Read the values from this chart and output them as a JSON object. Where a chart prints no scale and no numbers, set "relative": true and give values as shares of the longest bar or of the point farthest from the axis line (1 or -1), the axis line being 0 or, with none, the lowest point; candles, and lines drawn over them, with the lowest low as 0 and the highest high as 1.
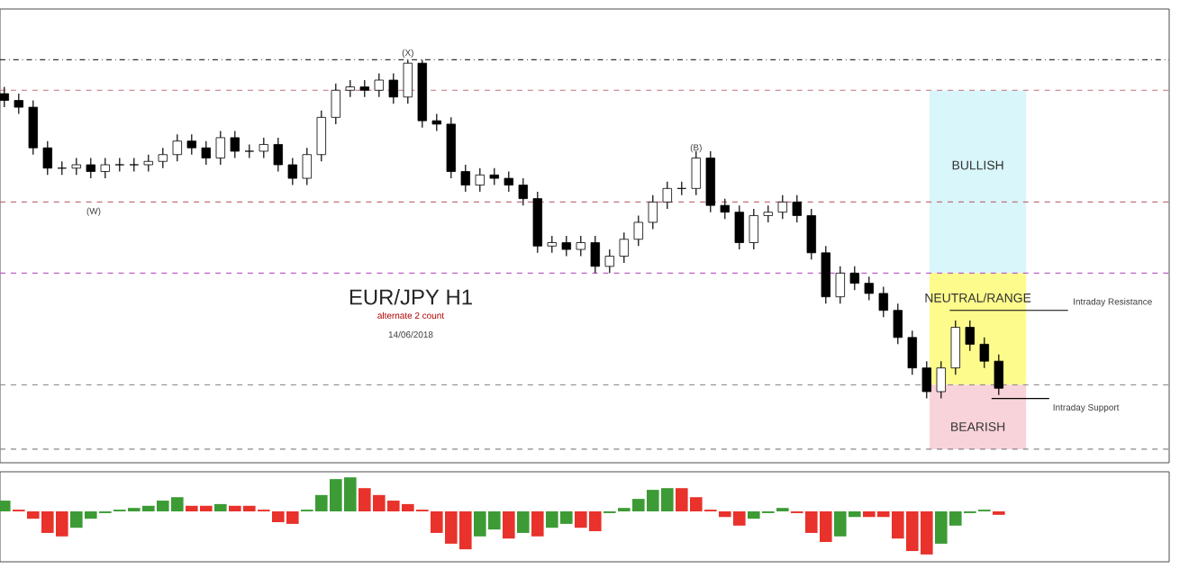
{
  "chart_data": [
    {
      "type": "candlestick",
      "title": "EUR/JPY H1",
      "subtitle": "alternate 2 count",
      "relative": true,
      "categories": [
        null,
        null,
        null,
        null,
        null,
        null,
        null,
        null,
        null,
        null,
        null,
        null,
        null,
        null,
        null,
        null,
        null,
        null,
        null,
        null,
        null,
        null,
        null,
        null,
        null,
        null,
        null,
        null,
        null,
        null,
        null,
        null,
        null,
        null,
        null,
        null,
        null,
        null,
        null,
        null,
        null,
        null,
        null,
        null,
        null,
        null,
        null,
        null,
        null,
        null,
        null,
        null,
        null,
        null,
        null,
        null,
        null,
        null,
        null,
        null,
        null,
        null,
        null,
        null,
        null,
        null,
        null,
        null,
        null,
        null
      ],
      "ohlc": [
        [
          0.9,
          0.92,
          0.86,
          0.88
        ],
        [
          0.88,
          0.9,
          0.84,
          0.86
        ],
        [
          0.86,
          0.88,
          0.72,
          0.74
        ],
        [
          0.74,
          0.76,
          0.66,
          0.68
        ],
        [
          0.68,
          0.7,
          0.66,
          0.68
        ],
        [
          0.68,
          0.71,
          0.66,
          0.69
        ],
        [
          0.69,
          0.71,
          0.65,
          0.67
        ],
        [
          0.67,
          0.71,
          0.65,
          0.69
        ],
        [
          0.69,
          0.71,
          0.67,
          0.69
        ],
        [
          0.69,
          0.71,
          0.67,
          0.69
        ],
        [
          0.69,
          0.72,
          0.67,
          0.7
        ],
        [
          0.7,
          0.74,
          0.68,
          0.72
        ],
        [
          0.72,
          0.78,
          0.7,
          0.76
        ],
        [
          0.76,
          0.78,
          0.72,
          0.74
        ],
        [
          0.74,
          0.76,
          0.69,
          0.71
        ],
        [
          0.71,
          0.79,
          0.69,
          0.77
        ],
        [
          0.77,
          0.79,
          0.71,
          0.73
        ],
        [
          0.73,
          0.75,
          0.71,
          0.73
        ],
        [
          0.73,
          0.77,
          0.71,
          0.75
        ],
        [
          0.75,
          0.77,
          0.67,
          0.69
        ],
        [
          0.69,
          0.71,
          0.63,
          0.65
        ],
        [
          0.65,
          0.74,
          0.63,
          0.72
        ],
        [
          0.72,
          0.85,
          0.7,
          0.83
        ],
        [
          0.83,
          0.93,
          0.81,
          0.91
        ],
        [
          0.91,
          0.94,
          0.89,
          0.92
        ],
        [
          0.92,
          0.94,
          0.89,
          0.91
        ],
        [
          0.91,
          0.96,
          0.89,
          0.94
        ],
        [
          0.94,
          0.96,
          0.87,
          0.89
        ],
        [
          0.89,
          1.0,
          0.87,
          0.99
        ],
        [
          0.99,
          1.0,
          0.8,
          0.82
        ],
        [
          0.82,
          0.84,
          0.79,
          0.81
        ],
        [
          0.81,
          0.83,
          0.65,
          0.67
        ],
        [
          0.67,
          0.69,
          0.61,
          0.63
        ],
        [
          0.63,
          0.68,
          0.61,
          0.66
        ],
        [
          0.66,
          0.68,
          0.63,
          0.65
        ],
        [
          0.65,
          0.67,
          0.61,
          0.63
        ],
        [
          0.63,
          0.65,
          0.57,
          0.59
        ],
        [
          0.59,
          0.61,
          0.43,
          0.45
        ],
        [
          0.45,
          0.48,
          0.43,
          0.46
        ],
        [
          0.46,
          0.48,
          0.42,
          0.44
        ],
        [
          0.44,
          0.48,
          0.42,
          0.46
        ],
        [
          0.46,
          0.48,
          0.37,
          0.39
        ],
        [
          0.39,
          0.44,
          0.37,
          0.42
        ],
        [
          0.42,
          0.49,
          0.4,
          0.47
        ],
        [
          0.47,
          0.54,
          0.45,
          0.52
        ],
        [
          0.52,
          0.6,
          0.5,
          0.58
        ],
        [
          0.58,
          0.64,
          0.56,
          0.62
        ],
        [
          0.62,
          0.64,
          0.6,
          0.62
        ],
        [
          0.62,
          0.73,
          0.6,
          0.71
        ],
        [
          0.71,
          0.73,
          0.55,
          0.57
        ],
        [
          0.57,
          0.59,
          0.53,
          0.55
        ],
        [
          0.55,
          0.57,
          0.44,
          0.46
        ],
        [
          0.46,
          0.56,
          0.44,
          0.54
        ],
        [
          0.54,
          0.57,
          0.52,
          0.55
        ],
        [
          0.55,
          0.6,
          0.53,
          0.58
        ],
        [
          0.58,
          0.6,
          0.52,
          0.54
        ],
        [
          0.54,
          0.56,
          0.41,
          0.43
        ],
        [
          0.43,
          0.45,
          0.28,
          0.3
        ],
        [
          0.3,
          0.39,
          0.28,
          0.37
        ],
        [
          0.37,
          0.39,
          0.32,
          0.34
        ],
        [
          0.34,
          0.36,
          0.29,
          0.31
        ],
        [
          0.31,
          0.33,
          0.24,
          0.26
        ],
        [
          0.26,
          0.28,
          0.16,
          0.18
        ],
        [
          0.18,
          0.2,
          0.07,
          0.09
        ],
        [
          0.09,
          0.11,
          0.0,
          0.02
        ],
        [
          0.02,
          0.11,
          0.0,
          0.09
        ],
        [
          0.09,
          0.23,
          0.07,
          0.21
        ],
        [
          0.21,
          0.23,
          0.14,
          0.16
        ],
        [
          0.16,
          0.18,
          0.09,
          0.11
        ],
        [
          0.11,
          0.13,
          0.01,
          0.03
        ]
      ],
      "bands": [
        {
          "axis": "y",
          "from": 0.37,
          "to": 0.91,
          "label": "BULLISH",
          "color": "#d9f6fb"
        },
        {
          "axis": "y",
          "from": 0.04,
          "to": 0.37,
          "label": "NEUTRAL/RANGE",
          "color": "#fdfb8c"
        },
        {
          "axis": "y",
          "from": -0.15,
          "to": 0.04,
          "label": "BEARISH",
          "color": "#f9d3da"
        }
      ],
      "ref_lines": [
        {
          "axis": "y",
          "value": 1.0,
          "color": "#333333",
          "line_style": "dotted"
        },
        {
          "axis": "y",
          "value": 0.91,
          "color": "#c0707a",
          "line_style": "dashed"
        },
        {
          "axis": "y",
          "value": 0.58,
          "color": "#c0707a",
          "line_style": "dashed"
        },
        {
          "axis": "y",
          "value": 0.37,
          "color": "#c060c8",
          "line_style": "dashed"
        },
        {
          "axis": "y",
          "value": 0.04,
          "color": "#888888",
          "line_style": "dashed"
        },
        {
          "axis": "y",
          "value": -0.15,
          "color": "#888888",
          "line_style": "dashed"
        }
      ],
      "annotations": [
        "14/06/2018",
        {
          "text": "(X)",
          "y": 1.0
        },
        "(W)",
        {
          "text": "(B)",
          "y": 0.71
        },
        "Intraday Resistance",
        "Intraday Support"
      ]
    },
    {
      "type": "bar",
      "relative": true,
      "categories": [
        null,
        null,
        null,
        null,
        null,
        null,
        null,
        null,
        null,
        null,
        null,
        null,
        null,
        null,
        null,
        null,
        null,
        null,
        null,
        null,
        null,
        null,
        null,
        null,
        null,
        null,
        null,
        null,
        null,
        null,
        null,
        null,
        null,
        null,
        null,
        null,
        null,
        null,
        null,
        null,
        null,
        null,
        null,
        null,
        null,
        null,
        null,
        null,
        null,
        null,
        null,
        null,
        null,
        null,
        null,
        null,
        null,
        null,
        null,
        null,
        null,
        null,
        null,
        null,
        null,
        null,
        null,
        null,
        null,
        null
      ],
      "values": [
        0.25,
        0.04,
        -0.17,
        -0.5,
        -0.58,
        -0.38,
        -0.17,
        -0.04,
        0.04,
        0.08,
        0.13,
        0.25,
        0.33,
        0.13,
        0.13,
        0.17,
        0.13,
        0.13,
        0.04,
        -0.25,
        -0.29,
        0.04,
        0.38,
        0.75,
        0.79,
        0.54,
        0.38,
        0.25,
        0.17,
        0.04,
        -0.5,
        -0.75,
        -0.88,
        -0.58,
        -0.42,
        -0.63,
        -0.5,
        -0.58,
        -0.38,
        -0.29,
        -0.38,
        -0.46,
        -0.04,
        0.08,
        0.29,
        0.5,
        0.54,
        0.54,
        0.33,
        0.04,
        -0.13,
        -0.33,
        -0.17,
        -0.04,
        0.08,
        -0.04,
        -0.5,
        -0.71,
        -0.58,
        -0.13,
        -0.13,
        -0.13,
        -0.63,
        -0.92,
        -1,
        -0.75,
        -0.33,
        -0.04,
        0.04,
        -0.08
      ],
      "colors": [
        "#3c9b35",
        "#e8322b",
        "#e8322b",
        "#e8322b",
        "#e8322b",
        "#3c9b35",
        "#3c9b35",
        "#3c9b35",
        "#3c9b35",
        "#3c9b35",
        "#3c9b35",
        "#3c9b35",
        "#3c9b35",
        "#e8322b",
        "#e8322b",
        "#3c9b35",
        "#e8322b",
        "#e8322b",
        "#e8322b",
        "#e8322b",
        "#e8322b",
        "#3c9b35",
        "#3c9b35",
        "#3c9b35",
        "#3c9b35",
        "#e8322b",
        "#e8322b",
        "#e8322b",
        "#e8322b",
        "#e8322b",
        "#e8322b",
        "#e8322b",
        "#e8322b",
        "#3c9b35",
        "#3c9b35",
        "#e8322b",
        "#3c9b35",
        "#e8322b",
        "#3c9b35",
        "#3c9b35",
        "#e8322b",
        "#e8322b",
        "#3c9b35",
        "#3c9b35",
        "#3c9b35",
        "#3c9b35",
        "#3c9b35",
        "#e8322b",
        "#e8322b",
        "#e8322b",
        "#e8322b",
        "#e8322b",
        "#3c9b35",
        "#3c9b35",
        "#3c9b35",
        "#e8322b",
        "#e8322b",
        "#e8322b",
        "#3c9b35",
        "#3c9b35",
        "#e8322b",
        "#e8322b",
        "#e8322b",
        "#e8322b",
        "#e8322b",
        "#3c9b35",
        "#3c9b35",
        "#3c9b35",
        "#3c9b35",
        "#e8322b"
      ]
    }
  ]
}
